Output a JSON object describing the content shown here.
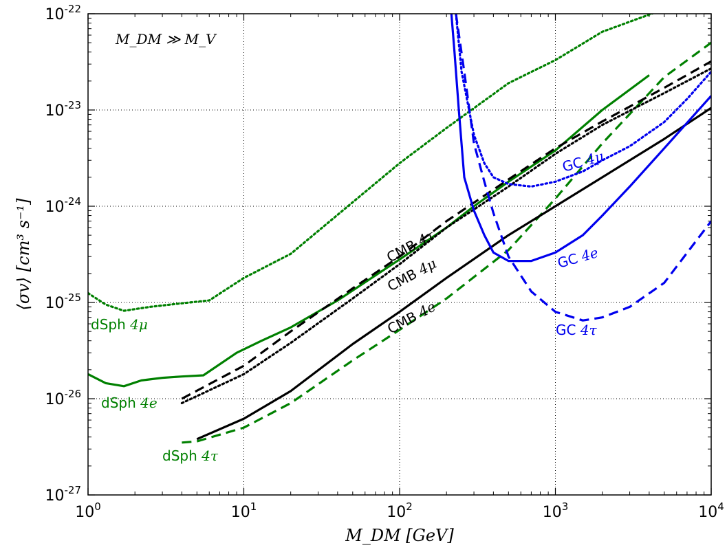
{
  "chart_data": {
    "type": "line",
    "title": "",
    "xlabel": "M_DM  [GeV]",
    "ylabel": "⟨σv⟩  [cm³ s⁻¹]",
    "xscale": "log",
    "yscale": "log",
    "xlim": [
      1,
      10000
    ],
    "ylim": [
      1e-27,
      1e-22
    ],
    "grid": true,
    "x_ticks": [
      {
        "base": "10",
        "exp": "0"
      },
      {
        "base": "10",
        "exp": "1"
      },
      {
        "base": "10",
        "exp": "2"
      },
      {
        "base": "10",
        "exp": "3"
      },
      {
        "base": "10",
        "exp": "4"
      }
    ],
    "y_ticks": [
      {
        "base": "10",
        "exp": "-27"
      },
      {
        "base": "10",
        "exp": "-26"
      },
      {
        "base": "10",
        "exp": "-25"
      },
      {
        "base": "10",
        "exp": "-24"
      },
      {
        "base": "10",
        "exp": "-23"
      },
      {
        "base": "10",
        "exp": "-22"
      }
    ],
    "annotation": "M_DM ≫ M_V",
    "series": [
      {
        "label_prefix": "dSph ",
        "label_math": "4μ",
        "color": "#008000",
        "style": "dotted",
        "x": [
          1,
          1.3,
          1.7,
          2.5,
          4,
          6,
          10,
          20,
          50,
          100,
          200,
          500,
          1000,
          2000,
          4500
        ],
        "y": [
          1.25e-25,
          9.5e-26,
          8.2e-26,
          9e-26,
          9.8e-26,
          1.05e-25,
          1.8e-25,
          3.2e-25,
          1.1e-24,
          2.8e-24,
          6.5e-24,
          1.9e-23,
          3.3e-23,
          6.5e-23,
          1.05e-22
        ]
      },
      {
        "label_prefix": "dSph ",
        "label_math": "4e",
        "color": "#008000",
        "style": "solid",
        "x": [
          1,
          1.3,
          1.7,
          2.2,
          3,
          4,
          5.5,
          9,
          13,
          20,
          40,
          100,
          200,
          300,
          500,
          1000,
          2000,
          4000
        ],
        "y": [
          1.8e-26,
          1.45e-26,
          1.35e-26,
          1.55e-26,
          1.65e-26,
          1.7e-26,
          1.75e-26,
          3e-26,
          4e-26,
          5.5e-26,
          1.05e-25,
          2.8e-25,
          6e-25,
          1e-24,
          1.8e-24,
          3.8e-24,
          1e-23,
          2.3e-23
        ]
      },
      {
        "label_prefix": "dSph ",
        "label_math": "4τ",
        "color": "#008000",
        "style": "dashed",
        "x": [
          4,
          5,
          10,
          20,
          50,
          100,
          200,
          500,
          1000,
          2000,
          5000,
          10000
        ],
        "y": [
          3.5e-27,
          3.6e-27,
          5e-27,
          9e-27,
          2.5e-26,
          5.2e-26,
          1.1e-25,
          3.5e-25,
          1.2e-24,
          4.5e-24,
          2.2e-23,
          5e-23
        ]
      },
      {
        "label_prefix": "CMB ",
        "label_math": "4τ",
        "color": "#000000",
        "style": "dashed",
        "x": [
          4,
          10,
          20,
          50,
          100,
          200,
          500,
          1000,
          2000,
          5000,
          10000
        ],
        "y": [
          1e-26,
          2.2e-26,
          5e-26,
          1.4e-25,
          3e-25,
          7e-25,
          1.9e-24,
          4e-24,
          7.6e-24,
          1.7e-23,
          3.2e-23
        ]
      },
      {
        "label_prefix": "CMB ",
        "label_math": "4μ",
        "color": "#000000",
        "style": "dotted",
        "x": [
          4,
          10,
          20,
          50,
          100,
          200,
          500,
          1000,
          2000,
          5000,
          10000
        ],
        "y": [
          9e-27,
          1.8e-26,
          3.8e-26,
          1.1e-25,
          2.5e-25,
          6e-25,
          1.6e-24,
          3.5e-24,
          7e-24,
          1.5e-23,
          2.7e-23
        ]
      },
      {
        "label_prefix": "CMB ",
        "label_math": "4e",
        "color": "#000000",
        "style": "solid",
        "x": [
          5,
          10,
          20,
          50,
          100,
          200,
          500,
          1000,
          2000,
          5000,
          10000
        ],
        "y": [
          3.8e-27,
          6.2e-27,
          1.2e-26,
          3.7e-26,
          8e-26,
          1.8e-25,
          5e-25,
          1e-24,
          2e-24,
          5e-24,
          1.05e-23
        ]
      },
      {
        "label_prefix": "GC ",
        "label_math": "4μ",
        "color": "#0000ee",
        "style": "dotted",
        "x": [
          230,
          250,
          300,
          350,
          400,
          500,
          700,
          1000,
          1500,
          2000,
          3000,
          5000,
          7000,
          10000
        ],
        "y": [
          1e-22,
          2.5e-23,
          5.5e-24,
          2.8e-24,
          2e-24,
          1.7e-24,
          1.6e-24,
          1.8e-24,
          2.3e-24,
          3e-24,
          4.2e-24,
          7.5e-24,
          1.3e-23,
          2.5e-23
        ]
      },
      {
        "label_prefix": "GC ",
        "label_math": "4e",
        "color": "#0000ee",
        "style": "solid",
        "x": [
          215,
          225,
          240,
          260,
          300,
          350,
          400,
          500,
          700,
          1000,
          1500,
          2000,
          3000,
          5000,
          10000
        ],
        "y": [
          1e-22,
          4e-23,
          1e-23,
          2e-24,
          9e-25,
          5e-25,
          3.3e-25,
          2.7e-25,
          2.7e-25,
          3.3e-25,
          5e-25,
          8e-25,
          1.6e-24,
          4e-24,
          1.4e-23
        ]
      },
      {
        "label_prefix": "GC ",
        "label_math": "4τ",
        "color": "#0000ee",
        "style": "dashed",
        "x": [
          230,
          260,
          300,
          350,
          400,
          500,
          700,
          1000,
          1500,
          2000,
          3000,
          5000,
          10000
        ],
        "y": [
          1e-22,
          2.5e-23,
          4.5e-24,
          1.8e-24,
          8.5e-25,
          3e-25,
          1.3e-25,
          8e-26,
          6.5e-26,
          7e-26,
          9e-26,
          1.6e-25,
          7e-25
        ]
      }
    ]
  }
}
